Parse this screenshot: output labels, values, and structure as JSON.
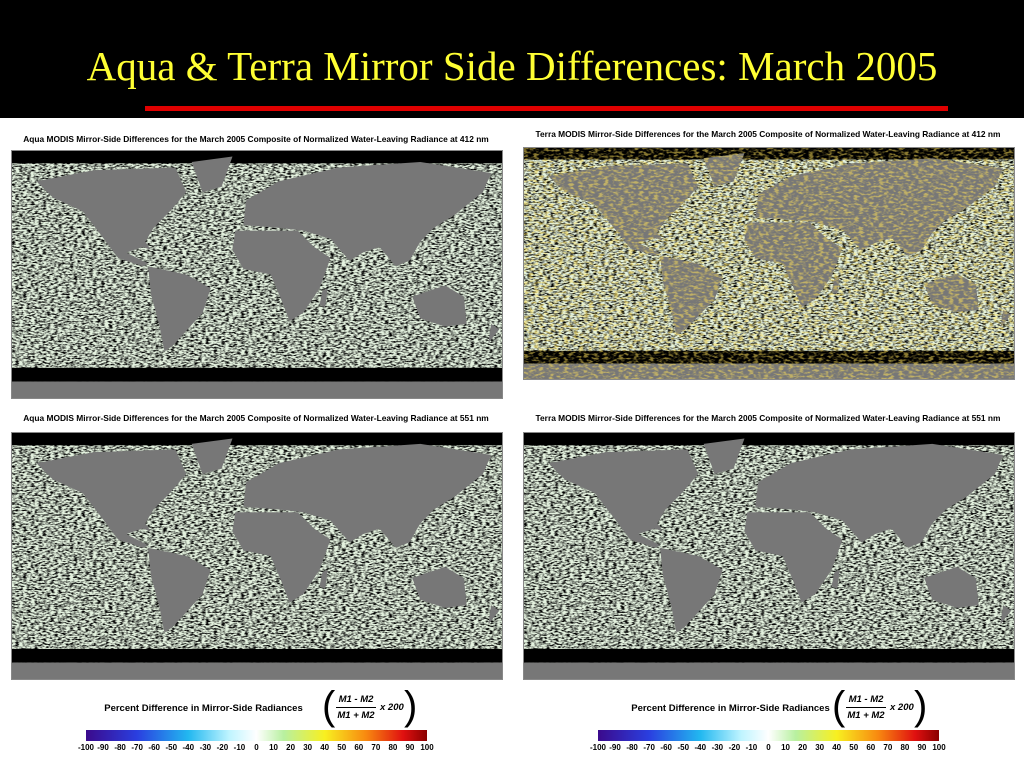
{
  "header": {
    "title": "Aqua & Terra Mirror Side Differences: March 2005"
  },
  "panels": [
    {
      "maps": [
        {
          "caption": "Aqua MODIS Mirror-Side Differences for the March 2005 Composite of Normalized Water-Leaving Radiance at 412 nm"
        },
        {
          "caption": "Aqua MODIS Mirror-Side Differences for the March 2005 Composite of Normalized Water-Leaving Radiance at 551 nm"
        }
      ],
      "colorbar": {
        "label": "Percent Difference in Mirror-Side Radiances",
        "numerator": "M1 - M2",
        "denominator": "M1 + M2",
        "factor": "x  200",
        "ticks": [
          -100,
          -90,
          -80,
          -70,
          -60,
          -50,
          -40,
          -30,
          -20,
          -10,
          0,
          10,
          20,
          30,
          40,
          50,
          60,
          70,
          80,
          90,
          100
        ]
      }
    },
    {
      "maps": [
        {
          "caption": "Terra MODIS Mirror-Side Differences for the March 2005 Composite of Normalized Water-Leaving Radiance at 412 nm"
        },
        {
          "caption": "Terra MODIS Mirror-Side Differences for the March 2005 Composite of Normalized Water-Leaving Radiance at 551 nm"
        }
      ],
      "colorbar": {
        "label": "Percent Difference in Mirror-Side Radiances",
        "numerator": "M1 - M2",
        "denominator": "M1 + M2",
        "factor": "x  200",
        "ticks": [
          -100,
          -90,
          -80,
          -70,
          -60,
          -50,
          -40,
          -30,
          -20,
          -10,
          0,
          10,
          20,
          30,
          40,
          50,
          60,
          70,
          80,
          90,
          100
        ]
      }
    }
  ]
}
